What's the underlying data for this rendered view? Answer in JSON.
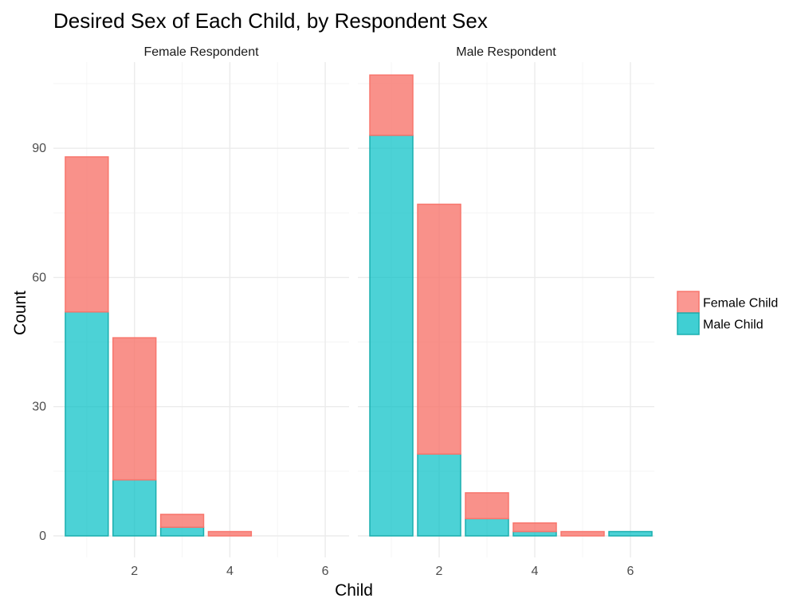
{
  "chart_data": {
    "type": "bar",
    "stacked": true,
    "title": "Desired Sex of Each Child, by Respondent Sex",
    "xlabel": "Child",
    "ylabel": "Count",
    "xlim": [
      0.3,
      6.5
    ],
    "ylim": [
      -5,
      110
    ],
    "x_ticks": [
      2,
      4,
      6
    ],
    "y_ticks": [
      0,
      30,
      60,
      90
    ],
    "legend_position": "right",
    "grid": true,
    "series_colors": {
      "fill": [
        "#F8766D",
        "#00BFC4"
      ],
      "stroke": [
        "#F8766D",
        "#1AAFAF"
      ]
    },
    "legend": [
      "Female Child",
      "Male Child"
    ],
    "panels": [
      {
        "strip": "Female Respondent",
        "x": [
          1,
          2,
          3,
          4,
          5,
          6
        ],
        "series": [
          {
            "name": "Male Child",
            "values": [
              52,
              13,
              2,
              0,
              0,
              0
            ]
          },
          {
            "name": "Female Child",
            "values": [
              36,
              33,
              3,
              1,
              0,
              0
            ]
          }
        ]
      },
      {
        "strip": "Male Respondent",
        "x": [
          1,
          2,
          3,
          4,
          5,
          6
        ],
        "series": [
          {
            "name": "Male Child",
            "values": [
              93,
              19,
              4,
              1,
              0,
              1
            ]
          },
          {
            "name": "Female Child",
            "values": [
              14,
              58,
              6,
              2,
              1,
              0
            ]
          }
        ]
      }
    ]
  }
}
